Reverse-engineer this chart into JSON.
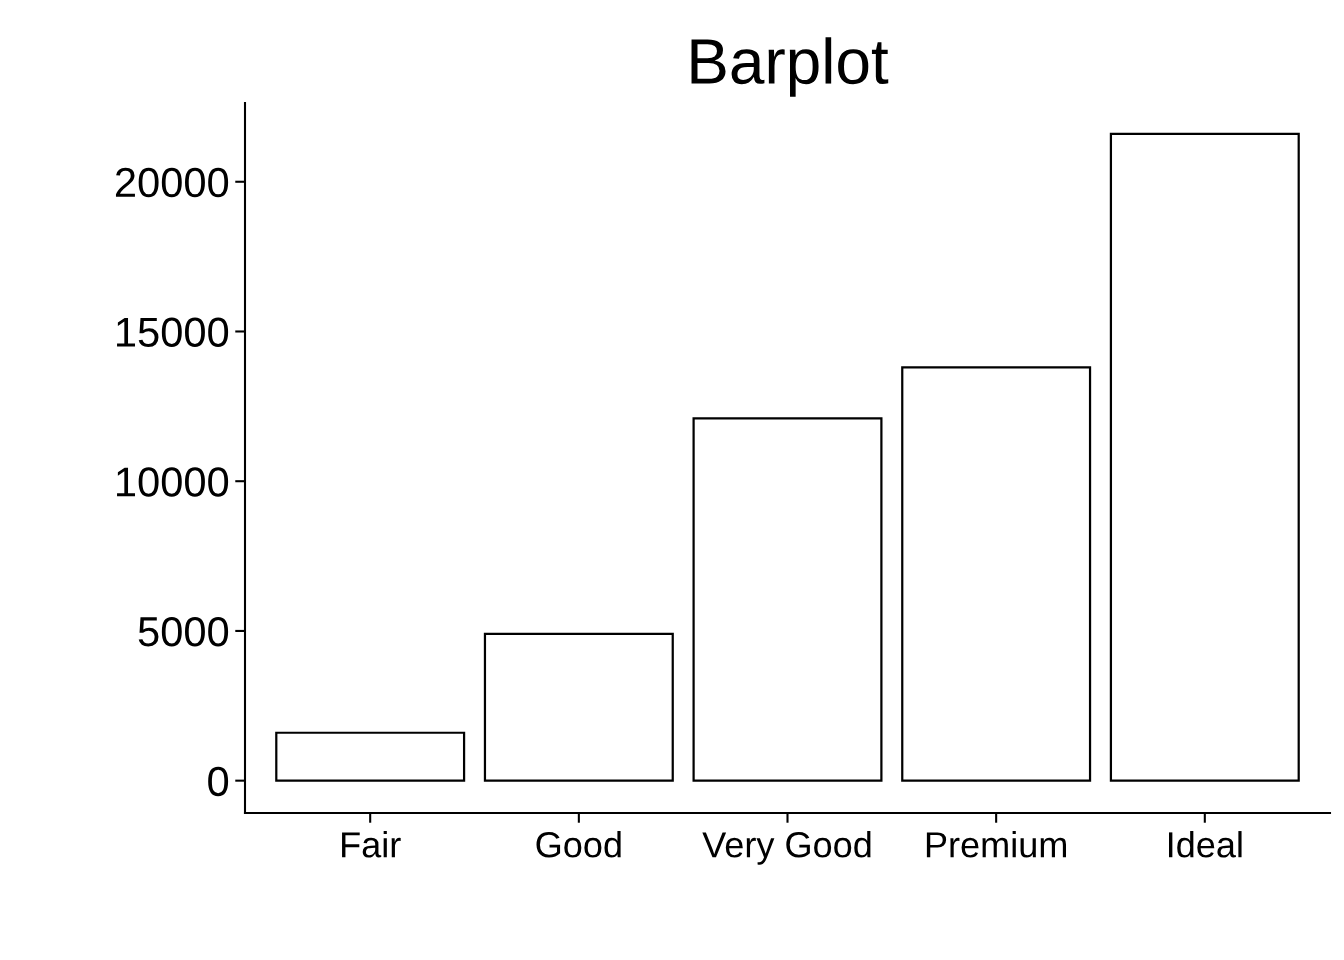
{
  "chart_data": {
    "type": "bar",
    "title": "Barplot",
    "categories": [
      "Fair",
      "Good",
      "Very Good",
      "Premium",
      "Ideal"
    ],
    "values": [
      1600,
      4900,
      12100,
      13800,
      21600
    ],
    "color": "#ffffff",
    "ylim": [
      -1080,
      22630
    ],
    "yticks": [
      0,
      5000,
      10000,
      15000,
      20000
    ],
    "grid": false
  }
}
